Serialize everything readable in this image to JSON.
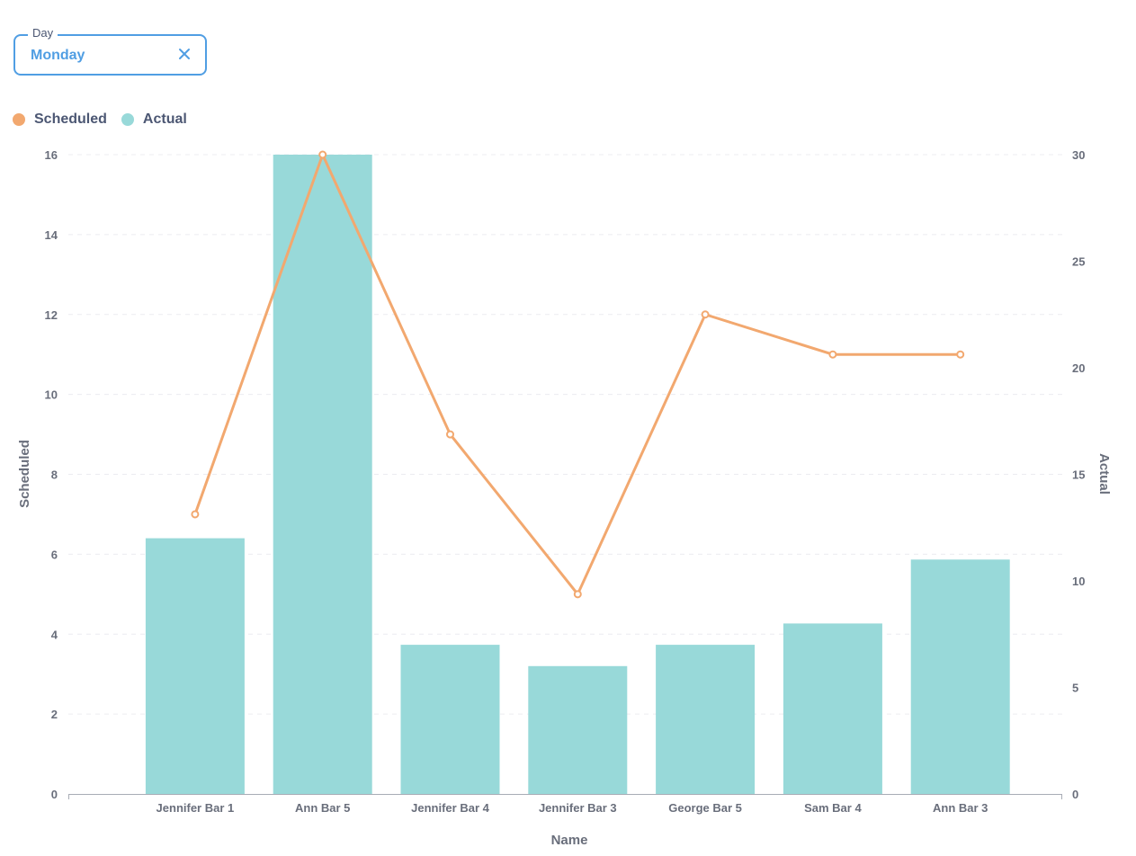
{
  "filter": {
    "label": "Day",
    "value": "Monday",
    "clear_icon": "close-icon"
  },
  "colors": {
    "scheduled": "#f2a86f",
    "actual": "#98d9d9",
    "accent": "#509ee3"
  },
  "chart_data": {
    "type": "bar",
    "categories": [
      "Jennifer Bar 1",
      "Ann Bar 5",
      "Jennifer Bar 4",
      "Jennifer Bar 3",
      "George Bar 5",
      "Sam Bar 4",
      "Ann Bar 3"
    ],
    "series": [
      {
        "name": "Scheduled",
        "type": "line",
        "axis": "left",
        "values": [
          7,
          16,
          9,
          5,
          12,
          11,
          11
        ]
      },
      {
        "name": "Actual",
        "type": "bar",
        "axis": "right",
        "values": [
          12,
          30,
          7,
          6,
          7,
          8,
          11
        ]
      }
    ],
    "xlabel": "Name",
    "ylabel": "Scheduled",
    "y2label": "Actual",
    "ylim": [
      0,
      16
    ],
    "y2lim": [
      0,
      30
    ],
    "yticks": [
      0,
      2,
      4,
      6,
      8,
      10,
      12,
      14,
      16
    ],
    "y2ticks": [
      0,
      5,
      10,
      15,
      20,
      25,
      30
    ],
    "grid": true,
    "legend_position": "top-left"
  }
}
